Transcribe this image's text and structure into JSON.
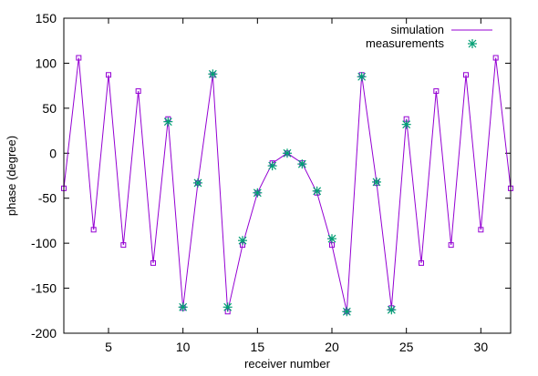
{
  "chart_data": {
    "type": "line",
    "title": "",
    "xlabel": "receiver number",
    "ylabel": "phase (degree)",
    "xlim": [
      2,
      32
    ],
    "ylim": [
      -200,
      150
    ],
    "xticks": [
      5,
      10,
      15,
      20,
      25,
      30
    ],
    "yticks": [
      -200,
      -150,
      -100,
      -50,
      0,
      50,
      100,
      150
    ],
    "legend_position": "top-right",
    "series": [
      {
        "name": "simulation",
        "style": "line-with-square-markers",
        "color": "#9400d3",
        "x": [
          2,
          3,
          4,
          5,
          6,
          7,
          8,
          9,
          10,
          11,
          12,
          13,
          14,
          15,
          16,
          17,
          18,
          19,
          20,
          21,
          22,
          23,
          24,
          25,
          26,
          27,
          28,
          29,
          30,
          31,
          32
        ],
        "y": [
          -39,
          106,
          -85,
          87,
          -102,
          69,
          -122,
          38,
          -172,
          -33,
          87,
          -176,
          -102,
          -44,
          -11,
          0,
          -11,
          -44,
          -102,
          -176,
          87,
          -33,
          -172,
          38,
          -122,
          69,
          -102,
          87,
          -85,
          106,
          -39
        ]
      },
      {
        "name": "measurements",
        "style": "star-markers",
        "color": "#009e73",
        "x": [
          9,
          10,
          11,
          12,
          13,
          14,
          15,
          16,
          17,
          18,
          19,
          20,
          21,
          22,
          23,
          24,
          25
        ],
        "y": [
          35,
          -171,
          -33,
          88,
          -171,
          -97,
          -44,
          -14,
          0,
          -12,
          -42,
          -95,
          -176,
          85,
          -32,
          -174,
          32
        ]
      }
    ]
  }
}
